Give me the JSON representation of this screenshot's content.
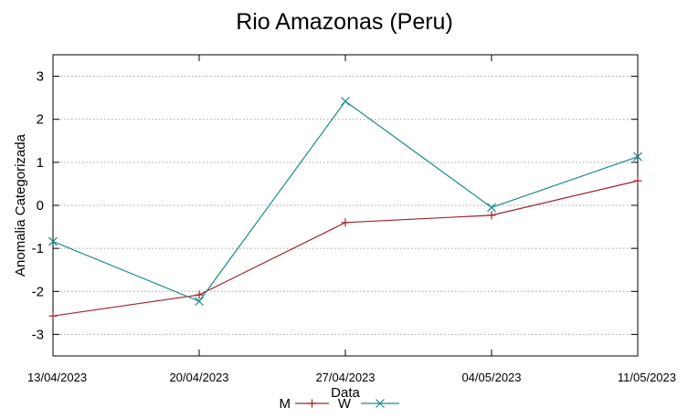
{
  "chart_data": {
    "type": "line",
    "title": "Rio Amazonas (Peru)",
    "xlabel": "Data",
    "ylabel": "Anomalia Categorizada",
    "categories": [
      "13/04/2023",
      "20/04/2023",
      "27/04/2023",
      "04/05/2023",
      "11/05/2023"
    ],
    "ylim": [
      -3.5,
      3.5
    ],
    "yticks": [
      3,
      2,
      1,
      0,
      -1,
      -2,
      -3
    ],
    "ytick_labels": [
      "3",
      "2",
      "1",
      "0",
      "-1",
      "-2",
      "-3"
    ],
    "grid": "horizontal dotted",
    "legend_position": "bottom-center",
    "series": [
      {
        "name": "M",
        "color": "#a0202a",
        "marker": "plus",
        "values": [
          -2.57,
          -2.08,
          -0.4,
          -0.23,
          0.57
        ]
      },
      {
        "name": "W",
        "color": "#1f8a8a",
        "marker": "cross",
        "values": [
          -0.84,
          -2.23,
          2.42,
          -0.05,
          1.13
        ]
      }
    ]
  }
}
